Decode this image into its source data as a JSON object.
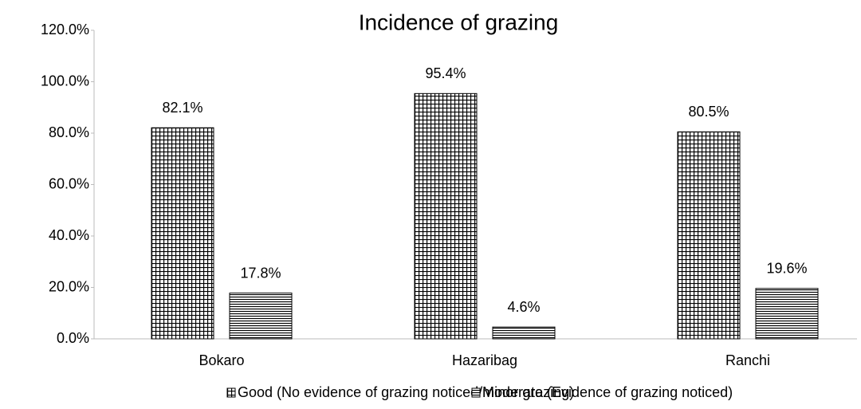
{
  "chart_data": {
    "type": "bar",
    "title": "Incidence of grazing",
    "categories": [
      "Bokaro",
      "Hazaribag",
      "Ranchi"
    ],
    "series": [
      {
        "name": "Good (No evidence of grazing noticed/minor grazing)",
        "color": "#000000",
        "pattern": "grid",
        "values": [
          82.1,
          95.4,
          80.5
        ],
        "value_labels": [
          "82.1%",
          "95.4%",
          "80.5%"
        ]
      },
      {
        "name": "Moderate (Evidence of grazing noticed)",
        "color": "#000000",
        "pattern": "horizontal",
        "values": [
          17.8,
          4.6,
          19.6
        ],
        "value_labels": [
          "17.8%",
          "4.6%",
          "19.6%"
        ]
      }
    ],
    "ylim": [
      0,
      120
    ],
    "yticks": [
      {
        "value": 0,
        "label": "0.0%"
      },
      {
        "value": 20,
        "label": "20.0%"
      },
      {
        "value": 40,
        "label": "40.0%"
      },
      {
        "value": 60,
        "label": "60.0%"
      },
      {
        "value": 80,
        "label": "80.0%"
      },
      {
        "value": 100,
        "label": "100.0%"
      },
      {
        "value": 120,
        "label": "120.0%"
      }
    ],
    "grid": false,
    "legend": "bottom"
  }
}
